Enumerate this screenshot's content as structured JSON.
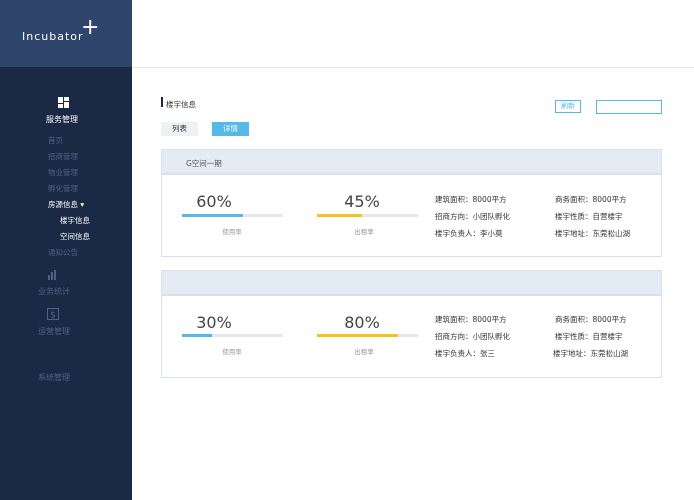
{
  "brand": {
    "name": "Incubator",
    "plus": "+"
  },
  "sidebar": {
    "sections": [
      {
        "label": "服务管理",
        "icon": "dashboard-icon",
        "items": [
          {
            "label": "首页"
          },
          {
            "label": "招商管理"
          },
          {
            "label": "物业管理"
          },
          {
            "label": "孵化管理"
          },
          {
            "label": "房源信息 ▾"
          }
        ],
        "subitems": [
          {
            "label": "楼宇信息"
          },
          {
            "label": "空间信息"
          }
        ],
        "after": [
          {
            "label": "通知公告"
          }
        ]
      },
      {
        "label": "业务统计",
        "icon": "bar-chart-icon"
      },
      {
        "label": "运营管理",
        "icon": "dollar-icon"
      },
      {
        "label": "系统管理"
      }
    ]
  },
  "breadcrumb": {
    "title": "楼宇信息"
  },
  "toolbar": {
    "refresh_label": "刷新",
    "search_value": ""
  },
  "tabs": [
    {
      "label": "列表"
    },
    {
      "label": "详情"
    }
  ],
  "colors": {
    "accent": "#56b8e6",
    "sidebar": "#1b2a44",
    "brand": "#2f456b",
    "yellow": "#f6c21f",
    "track": "#e6e8ec"
  },
  "buildings": [
    {
      "name": "G空间一期",
      "usage_pct": "60%",
      "usage_value": 0.6,
      "usage_caption": "使用率",
      "rent_pct": "45%",
      "rent_value": 0.45,
      "rent_caption": "出租率",
      "area_build": "建筑面积：8000平方",
      "area_business": "商务面积：8000平方",
      "direction": "招商方向：小团队孵化",
      "nature": "楼宇性质：自营楼宇",
      "manager": "楼宇负责人：李小莫",
      "address": "楼宇地址：东莞松山湖"
    },
    {
      "name": "",
      "usage_pct": "30%",
      "usage_value": 0.3,
      "usage_caption": "使用率",
      "rent_pct": "80%",
      "rent_value": 0.8,
      "rent_caption": "出租率",
      "area_build": "建筑面积：8000平方",
      "area_business": "商务面积：8000平方",
      "direction": "招商方向：小团队孵化",
      "nature": "楼宇性质：自营楼宇",
      "manager": "楼宇负责人：张三",
      "address": "楼宇地址：东莞松山湖"
    }
  ]
}
